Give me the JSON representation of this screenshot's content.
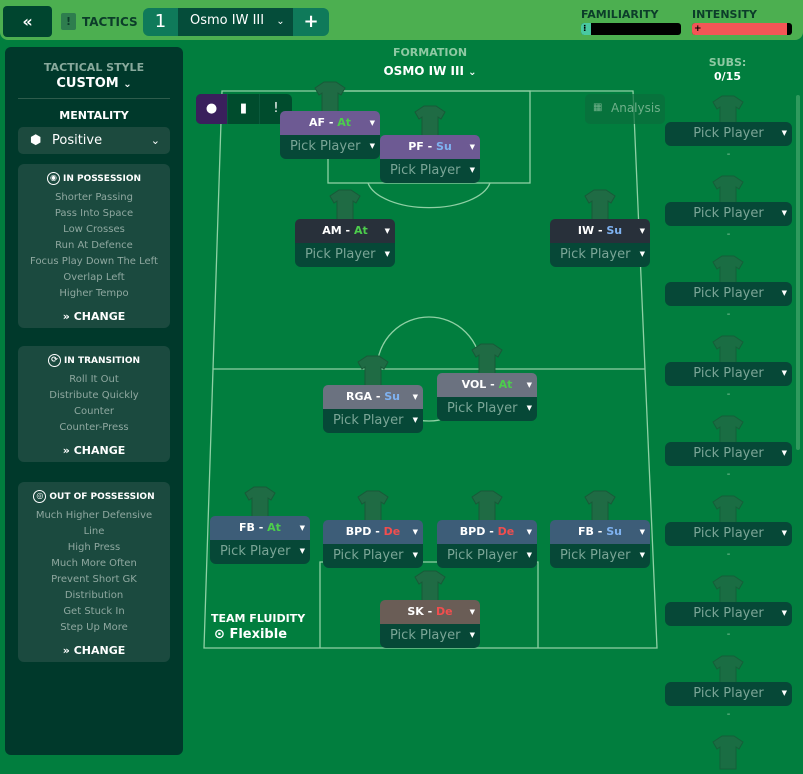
{
  "topbar": {
    "back_icon": "double-chevron-left",
    "tactics_label": "TACTICS",
    "tab_number": "1",
    "tab_name": "Osmo IW III",
    "add_label": "+",
    "familiarity": {
      "label": "FAMILIARITY",
      "value_percent": 10,
      "color": "#49c9a0"
    },
    "intensity": {
      "label": "INTENSITY",
      "value_percent": 95,
      "color": "#f25656"
    }
  },
  "left": {
    "style_title": "TACTICAL STYLE",
    "style_value": "CUSTOM",
    "mentality_title": "MENTALITY",
    "mentality_value": "Positive",
    "sections": [
      {
        "title": "IN POSSESSION",
        "icon": "ball",
        "items": [
          "Shorter Passing",
          "Pass Into Space",
          "Low Crosses",
          "Run At Defence",
          "Focus Play Down The Left",
          "Overlap Left",
          "Higher Tempo"
        ],
        "change": "CHANGE"
      },
      {
        "title": "IN TRANSITION",
        "icon": "transition",
        "items": [
          "Roll It Out",
          "Distribute Quickly",
          "Counter",
          "Counter-Press"
        ],
        "change": "CHANGE"
      },
      {
        "title": "OUT OF POSSESSION",
        "icon": "defence",
        "items": [
          "Much Higher Defensive",
          "Line",
          "High Press",
          "Much More Often",
          "Prevent Short GK",
          "Distribution",
          "Get Stuck In",
          "Step Up More"
        ],
        "change": "CHANGE"
      }
    ]
  },
  "formation": {
    "title": "FORMATION",
    "value": "OSMO IW III",
    "analysis": "Analysis"
  },
  "positions": [
    {
      "role": "AF",
      "duty": "At",
      "color": "#6d5a93",
      "player": "Pick Player"
    },
    {
      "role": "PF",
      "duty": "Su",
      "color": "#6d5a93",
      "player": "Pick Player"
    },
    {
      "role": "AM",
      "duty": "At",
      "color": "#28303a",
      "player": "Pick Player"
    },
    {
      "role": "IW",
      "duty": "Su",
      "color": "#28303a",
      "player": "Pick Player"
    },
    {
      "role": "RGA",
      "duty": "Su",
      "color": "#6b7280",
      "player": "Pick Player"
    },
    {
      "role": "VOL",
      "duty": "At",
      "color": "#6b7280",
      "player": "Pick Player"
    },
    {
      "role": "FB",
      "duty": "At",
      "color": "#3d5d78",
      "player": "Pick Player"
    },
    {
      "role": "BPD",
      "duty": "De",
      "color": "#3d5d78",
      "player": "Pick Player"
    },
    {
      "role": "BPD",
      "duty": "De",
      "color": "#3d5d78",
      "player": "Pick Player"
    },
    {
      "role": "FB",
      "duty": "Su",
      "color": "#3d5d78",
      "player": "Pick Player"
    },
    {
      "role": "SK",
      "duty": "De",
      "color": "#6a5d56",
      "player": "Pick Player"
    }
  ],
  "duty_colors": {
    "At": "#4ccd4c",
    "Su": "#7fb2f0",
    "De": "#f24e4e"
  },
  "fluidity": {
    "title": "TEAM FLUIDITY",
    "value": "Flexible"
  },
  "subs": {
    "title": "SUBS:",
    "count": "0/15",
    "slots": [
      {
        "player": "Pick Player",
        "info": "-"
      },
      {
        "player": "Pick Player",
        "info": "-"
      },
      {
        "player": "Pick Player",
        "info": "-"
      },
      {
        "player": "Pick Player",
        "info": "-"
      },
      {
        "player": "Pick Player",
        "info": "-"
      },
      {
        "player": "Pick Player",
        "info": "-"
      },
      {
        "player": "Pick Player",
        "info": "-"
      },
      {
        "player": "Pick Player",
        "info": "-"
      }
    ]
  }
}
